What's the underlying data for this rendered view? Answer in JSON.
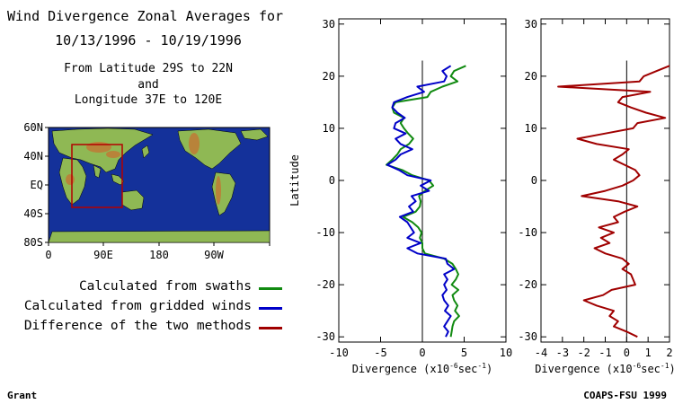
{
  "header": {
    "title_line1": "Wind Divergence Zonal Averages for",
    "title_line2": "10/13/1996 - 10/19/1996",
    "region_line1": "From Latitude 29S to 22N",
    "region_line2": "and",
    "region_line3": "Longitude 37E to 120E"
  },
  "map": {
    "lat_labels": [
      "60N",
      "40N",
      "EQ",
      "40S",
      "80S"
    ],
    "lon_labels": [
      "0",
      "90E",
      "180",
      "90W"
    ],
    "colors": {
      "ocean": "#14319a",
      "land": "#8fb854",
      "mountain": "#b8833a",
      "region_box": "#b30000"
    }
  },
  "legend": [
    {
      "label": "Calculated from swaths",
      "color": "#118a11"
    },
    {
      "label": "Calculated from gridded winds",
      "color": "#0000c8"
    },
    {
      "label": "Difference of the two methods",
      "color": "#a00000"
    }
  ],
  "footer": {
    "left": "Grant",
    "right": "COAPS-FSU 1999"
  },
  "chart_data": [
    {
      "type": "line",
      "ylabel": "Latitude",
      "xlabel": "Divergence (x10",
      "xlabel_exp": "-6",
      "xlabel_unit": "sec",
      "xlabel_unit_exp": "-1",
      "xlabel_close": ")",
      "xlim": [
        -10,
        10
      ],
      "ylim": [
        -31,
        31
      ],
      "xticks": [
        -10,
        -5,
        0,
        5,
        10
      ],
      "yticks": [
        -30,
        -20,
        -10,
        0,
        10,
        20,
        30
      ],
      "zero_line": 0,
      "series": [
        {
          "color": "#118a11",
          "points": [
            [
              5.2,
              22
            ],
            [
              3.8,
              21
            ],
            [
              3.4,
              20
            ],
            [
              4.2,
              19
            ],
            [
              2.4,
              18
            ],
            [
              1.0,
              17
            ],
            [
              0.6,
              16
            ],
            [
              -3.2,
              15
            ],
            [
              -3.6,
              14
            ],
            [
              -3.4,
              13
            ],
            [
              -2.2,
              12
            ],
            [
              -2.6,
              11
            ],
            [
              -2.2,
              10
            ],
            [
              -1.7,
              9
            ],
            [
              -1.1,
              8
            ],
            [
              -1.6,
              7
            ],
            [
              -2.6,
              6
            ],
            [
              -3.0,
              5
            ],
            [
              -3.6,
              4
            ],
            [
              -4.3,
              3
            ],
            [
              -2.4,
              2
            ],
            [
              -1.2,
              1
            ],
            [
              0.8,
              0
            ],
            [
              1.3,
              -1
            ],
            [
              0.3,
              -2
            ],
            [
              -0.4,
              -3
            ],
            [
              -0.2,
              -4
            ],
            [
              -0.3,
              -5
            ],
            [
              -0.8,
              -6
            ],
            [
              -2.3,
              -7
            ],
            [
              -1.2,
              -8
            ],
            [
              -0.5,
              -9
            ],
            [
              -0.1,
              -10
            ],
            [
              -0.3,
              -11
            ],
            [
              0,
              -12
            ],
            [
              0,
              -13
            ],
            [
              0.3,
              -14
            ],
            [
              2.6,
              -15
            ],
            [
              3.6,
              -16
            ],
            [
              4.0,
              -17
            ],
            [
              4.3,
              -18
            ],
            [
              4.0,
              -19
            ],
            [
              3.5,
              -20
            ],
            [
              4.3,
              -21
            ],
            [
              3.6,
              -22
            ],
            [
              3.8,
              -23
            ],
            [
              4.2,
              -24
            ],
            [
              3.9,
              -25
            ],
            [
              4.4,
              -26
            ],
            [
              3.8,
              -27
            ],
            [
              3.6,
              -28
            ],
            [
              3.5,
              -29
            ],
            [
              3.4,
              -30
            ]
          ]
        },
        {
          "color": "#0000c8",
          "points": [
            [
              3.4,
              22
            ],
            [
              2.4,
              21
            ],
            [
              2.9,
              20
            ],
            [
              2.6,
              19
            ],
            [
              -0.6,
              18
            ],
            [
              0.2,
              17
            ],
            [
              -1.8,
              16
            ],
            [
              -3.4,
              15
            ],
            [
              -3.6,
              14
            ],
            [
              -3.0,
              13
            ],
            [
              -2.1,
              12
            ],
            [
              -3.2,
              11
            ],
            [
              -3.4,
              10
            ],
            [
              -2.0,
              9
            ],
            [
              -3.2,
              8
            ],
            [
              -2.6,
              7
            ],
            [
              -1.2,
              6
            ],
            [
              -2.6,
              5
            ],
            [
              -3.2,
              4
            ],
            [
              -4.2,
              3
            ],
            [
              -2.8,
              2
            ],
            [
              -1.8,
              1
            ],
            [
              1.0,
              0
            ],
            [
              -0.2,
              -1
            ],
            [
              0.8,
              -2
            ],
            [
              -1.3,
              -3
            ],
            [
              -0.8,
              -4
            ],
            [
              -1.6,
              -5
            ],
            [
              -1.1,
              -6
            ],
            [
              -2.7,
              -7
            ],
            [
              -1.8,
              -8
            ],
            [
              -1.4,
              -9
            ],
            [
              -1.0,
              -10
            ],
            [
              -1.8,
              -11
            ],
            [
              -0.2,
              -12
            ],
            [
              -1.8,
              -13
            ],
            [
              -0.6,
              -14
            ],
            [
              2.8,
              -15
            ],
            [
              3.0,
              -16
            ],
            [
              3.8,
              -17
            ],
            [
              2.6,
              -18
            ],
            [
              3.0,
              -19
            ],
            [
              2.6,
              -20
            ],
            [
              2.9,
              -21
            ],
            [
              2.4,
              -22
            ],
            [
              2.6,
              -23
            ],
            [
              3.1,
              -24
            ],
            [
              2.7,
              -25
            ],
            [
              3.4,
              -26
            ],
            [
              3.0,
              -27
            ],
            [
              2.6,
              -28
            ],
            [
              3.1,
              -29
            ],
            [
              2.8,
              -30
            ]
          ]
        }
      ]
    },
    {
      "type": "line",
      "xlabel": "Divergence (x10",
      "xlabel_exp": "-6",
      "xlabel_unit": "sec",
      "xlabel_unit_exp": "-1",
      "xlabel_close": ")",
      "xlim": [
        -4,
        2
      ],
      "ylim": [
        -31,
        31
      ],
      "xticks": [
        -4,
        -3,
        -2,
        -1,
        0,
        1,
        2
      ],
      "yticks": [
        -30,
        -20,
        -10,
        0,
        10,
        20,
        30
      ],
      "zero_line": 0,
      "series": [
        {
          "color": "#a00000",
          "points": [
            [
              2.0,
              22
            ],
            [
              1.4,
              21
            ],
            [
              0.8,
              20
            ],
            [
              0.6,
              19
            ],
            [
              -3.2,
              18
            ],
            [
              1.1,
              17
            ],
            [
              -0.2,
              16
            ],
            [
              -0.4,
              15
            ],
            [
              0.2,
              14
            ],
            [
              0.9,
              13
            ],
            [
              1.8,
              12
            ],
            [
              0.5,
              11
            ],
            [
              0.3,
              10
            ],
            [
              -1.0,
              9
            ],
            [
              -2.3,
              8
            ],
            [
              -1.4,
              7
            ],
            [
              0.1,
              6
            ],
            [
              -0.2,
              5
            ],
            [
              -0.6,
              4
            ],
            [
              -0.1,
              3
            ],
            [
              0.4,
              2
            ],
            [
              0.6,
              1
            ],
            [
              0.3,
              0
            ],
            [
              -0.2,
              -1
            ],
            [
              -1.0,
              -2
            ],
            [
              -2.1,
              -3
            ],
            [
              -0.4,
              -4
            ],
            [
              0.5,
              -5
            ],
            [
              -0.1,
              -6
            ],
            [
              -0.6,
              -7
            ],
            [
              -0.4,
              -8
            ],
            [
              -1.3,
              -9
            ],
            [
              -0.6,
              -10
            ],
            [
              -1.2,
              -11
            ],
            [
              -0.8,
              -12
            ],
            [
              -1.5,
              -13
            ],
            [
              -1.0,
              -14
            ],
            [
              -0.2,
              -15
            ],
            [
              0.1,
              -16
            ],
            [
              -0.2,
              -17
            ],
            [
              0.2,
              -18
            ],
            [
              0.3,
              -19
            ],
            [
              0.4,
              -20
            ],
            [
              -0.7,
              -21
            ],
            [
              -1.1,
              -22
            ],
            [
              -2.0,
              -23
            ],
            [
              -1.4,
              -24
            ],
            [
              -0.6,
              -25
            ],
            [
              -0.8,
              -26
            ],
            [
              -0.4,
              -27
            ],
            [
              -0.6,
              -28
            ],
            [
              0,
              -29
            ],
            [
              0.5,
              -30
            ]
          ]
        }
      ]
    }
  ]
}
